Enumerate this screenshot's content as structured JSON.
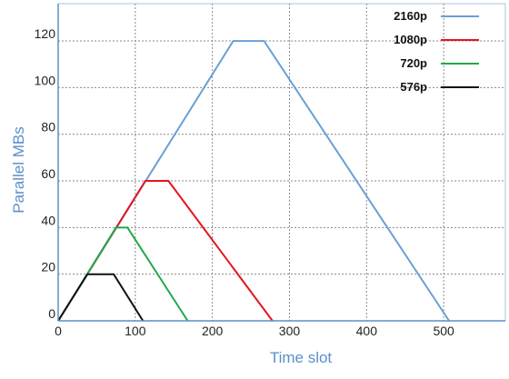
{
  "chart_data": {
    "type": "line",
    "xlabel": "Time slot",
    "ylabel": "Parallel MBs",
    "xlim": [
      0,
      580
    ],
    "ylim": [
      0,
      136
    ],
    "x_ticks": [
      "0",
      "100",
      "200",
      "300",
      "400",
      "500"
    ],
    "y_ticks": [
      "0",
      "20",
      "40",
      "60",
      "80",
      "100",
      "120"
    ],
    "grid": true,
    "legend_position": "top-right",
    "axis_color": "#5b8fc9",
    "series": [
      {
        "name": "2160p",
        "color": "#6a9fd6",
        "x": [
          0,
          227,
          267,
          507
        ],
        "y": [
          0,
          120,
          120,
          0
        ]
      },
      {
        "name": "1080p",
        "color": "#e5141c",
        "x": [
          0,
          113,
          143,
          278
        ],
        "y": [
          0,
          60,
          60,
          0
        ]
      },
      {
        "name": "720p",
        "color": "#22a84a",
        "x": [
          0,
          75,
          90,
          168
        ],
        "y": [
          0,
          40,
          40,
          0
        ]
      },
      {
        "name": "576p",
        "color": "#111111",
        "x": [
          0,
          38,
          72,
          110
        ],
        "y": [
          0,
          20,
          20,
          0
        ]
      }
    ]
  }
}
